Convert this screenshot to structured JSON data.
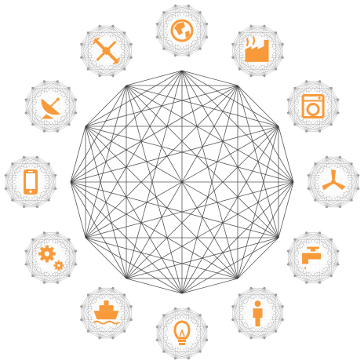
{
  "diagram": {
    "accent_color": "#F89A3A",
    "mesh_color": "#3a3a3a",
    "mini_mesh_color": "#9a9a9a",
    "nodes": [
      {
        "icon": "globe-icon"
      },
      {
        "icon": "factory-icon"
      },
      {
        "icon": "washing-machine-icon"
      },
      {
        "icon": "wind-turbine-icon"
      },
      {
        "icon": "water-faucet-icon"
      },
      {
        "icon": "person-icon"
      },
      {
        "icon": "light-bulb-icon"
      },
      {
        "icon": "ship-icon"
      },
      {
        "icon": "gears-icon"
      },
      {
        "icon": "smartphone-icon"
      },
      {
        "icon": "satellite-dish-icon"
      },
      {
        "icon": "satellite-icon"
      }
    ]
  }
}
